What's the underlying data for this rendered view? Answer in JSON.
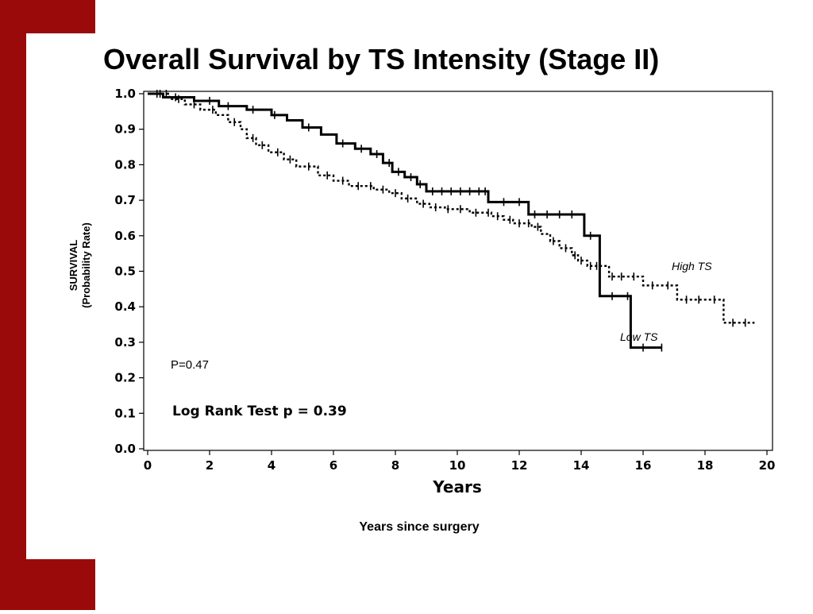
{
  "slide": {
    "title": "Overall Survival by TS Intensity (Stage II)",
    "subtitle": "Years since surgery",
    "colors": {
      "band": "#9b0a0a",
      "background": "#ffffff",
      "ink": "#000000"
    }
  },
  "chart_data": {
    "type": "line",
    "step": true,
    "title": "",
    "xlabel": "Years",
    "ylabel": [
      "SURVIVAL",
      "(Probability Rate)"
    ],
    "xlim": [
      0,
      20
    ],
    "ylim": [
      0,
      1.0
    ],
    "xticks": [
      0,
      2,
      4,
      6,
      8,
      10,
      12,
      14,
      16,
      18,
      20
    ],
    "yticks": [
      "0.0",
      "0.1",
      "0.2",
      "0.3",
      "0.4",
      "0.5",
      "0.6",
      "0.7",
      "0.8",
      "0.9",
      "1.0"
    ],
    "grid": false,
    "series": [
      {
        "name": "Low TS",
        "style": "solid",
        "x": [
          0,
          0.5,
          1.5,
          2.3,
          3.2,
          4.0,
          4.5,
          5.0,
          5.6,
          6.1,
          6.7,
          7.2,
          7.6,
          7.9,
          8.3,
          8.7,
          9.0,
          11.0,
          12.3,
          14.1,
          14.6,
          15.6,
          16.6
        ],
        "y": [
          1.0,
          0.99,
          0.98,
          0.965,
          0.955,
          0.94,
          0.925,
          0.905,
          0.885,
          0.86,
          0.845,
          0.83,
          0.805,
          0.78,
          0.765,
          0.745,
          0.725,
          0.695,
          0.66,
          0.6,
          0.43,
          0.285,
          0.285
        ],
        "censors": [
          0.4,
          0.9,
          2.0,
          2.6,
          3.4,
          4.1,
          5.2,
          6.3,
          6.9,
          7.4,
          7.8,
          8.1,
          8.5,
          8.8,
          9.2,
          9.5,
          9.8,
          10.1,
          10.4,
          10.7,
          10.9,
          11.5,
          12.0,
          12.5,
          12.9,
          13.3,
          13.7,
          14.3,
          15.0,
          15.5,
          16.0,
          16.6
        ]
      },
      {
        "name": "High TS",
        "style": "dashed",
        "x": [
          0,
          0.7,
          1.2,
          1.7,
          2.2,
          2.6,
          3.0,
          3.2,
          3.5,
          3.9,
          4.4,
          4.8,
          5.5,
          6.0,
          6.5,
          7.3,
          7.8,
          8.2,
          8.7,
          9.1,
          9.6,
          10.4,
          11.1,
          11.5,
          11.8,
          12.4,
          12.7,
          13.0,
          13.3,
          13.7,
          13.9,
          14.2,
          14.9,
          16.0,
          17.1,
          18.6,
          19.6
        ],
        "y": [
          1.0,
          0.985,
          0.97,
          0.955,
          0.94,
          0.92,
          0.9,
          0.875,
          0.855,
          0.835,
          0.815,
          0.795,
          0.77,
          0.755,
          0.74,
          0.73,
          0.72,
          0.705,
          0.69,
          0.68,
          0.675,
          0.665,
          0.655,
          0.645,
          0.635,
          0.625,
          0.605,
          0.585,
          0.565,
          0.545,
          0.53,
          0.515,
          0.485,
          0.46,
          0.42,
          0.355,
          0.355
        ],
        "censors": [
          0.3,
          0.6,
          1.0,
          1.5,
          2.1,
          2.8,
          3.4,
          3.7,
          4.2,
          4.6,
          5.2,
          5.8,
          6.3,
          6.8,
          7.2,
          7.6,
          8.0,
          8.4,
          8.9,
          9.3,
          9.7,
          10.1,
          10.6,
          11.0,
          11.3,
          11.7,
          12.0,
          12.3,
          12.6,
          13.1,
          13.5,
          13.8,
          14.0,
          14.3,
          14.5,
          15.0,
          15.3,
          15.7,
          16.3,
          16.8,
          17.4,
          17.8,
          18.3,
          18.9,
          19.3
        ]
      }
    ],
    "annotations": [
      {
        "text": "P=0.47"
      },
      {
        "text": "Log Rank Test p = 0.39"
      },
      {
        "text": "High TS"
      },
      {
        "text": "Low TS"
      }
    ]
  }
}
